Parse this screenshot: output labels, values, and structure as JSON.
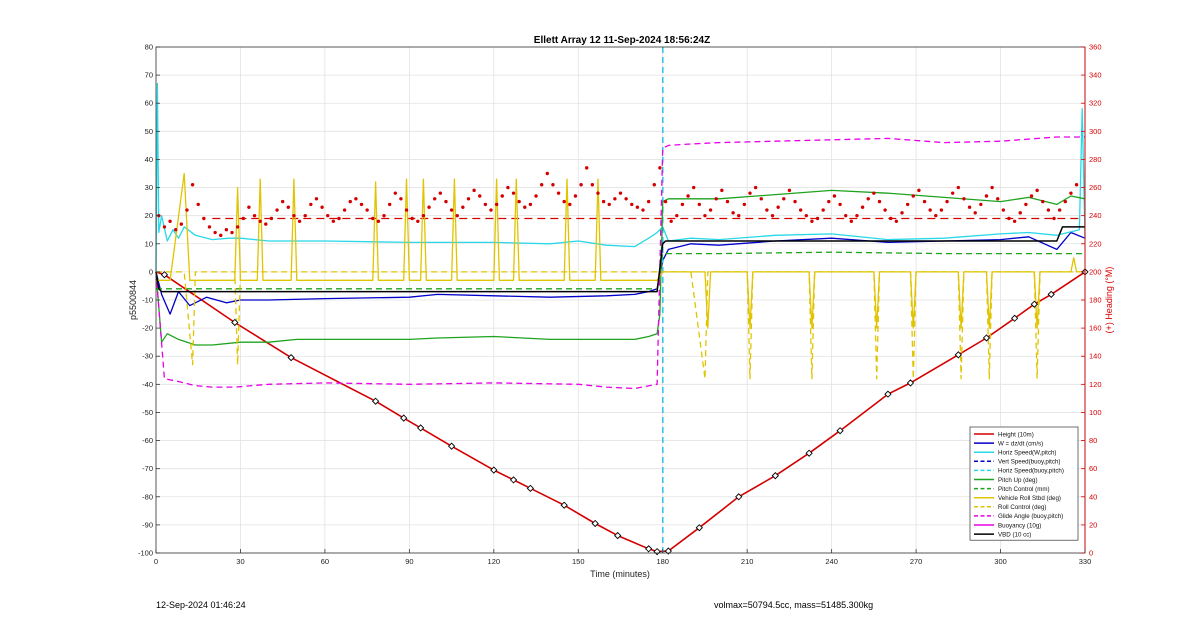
{
  "footer": {
    "timestamp": "12-Sep-2024 01:46:24",
    "mass_info": "volmax=50794.5cc, mass=51485.300kg"
  },
  "chart_data": {
    "type": "line",
    "title": "Ellett Array 12 11-Sep-2024 18:56:24Z",
    "xlabel": "Time (minutes)",
    "ylabel": "p5500844",
    "y2label": "(+) Heading (°M)",
    "xlim": [
      0,
      330
    ],
    "ylim": [
      -100,
      80
    ],
    "y2lim": [
      0,
      360
    ],
    "xticks": [
      0,
      30,
      60,
      90,
      120,
      150,
      180,
      210,
      240,
      270,
      300,
      330
    ],
    "yticks": [
      -100,
      -90,
      -80,
      -70,
      -60,
      -50,
      -40,
      -30,
      -20,
      -10,
      0,
      10,
      20,
      30,
      40,
      50,
      60,
      70,
      80
    ],
    "y2ticks": [
      0,
      20,
      40,
      60,
      80,
      100,
      120,
      140,
      160,
      180,
      200,
      220,
      240,
      260,
      280,
      300,
      320,
      340,
      360
    ],
    "apogee_line_x": 180,
    "grid": true,
    "legend_position": "bottom-right",
    "legend": [
      {
        "label": "Height (10m)",
        "color": "#d40000",
        "dash": false
      },
      {
        "label": "W = dz/dt (cm/s)",
        "color": "#0000c8",
        "dash": false
      },
      {
        "label": "Horiz Speed(W,pitch)",
        "color": "#28d8e8",
        "dash": false
      },
      {
        "label": "Vert Speed(buoy,pitch)",
        "color": "#0000c8",
        "dash": true
      },
      {
        "label": "Horiz Speed(buoy,pitch)",
        "color": "#28d8e8",
        "dash": true
      },
      {
        "label": "Pitch Up (deg)",
        "color": "#1fa31f",
        "dash": false
      },
      {
        "label": "Pitch Control (mm)",
        "color": "#1fa31f",
        "dash": true
      },
      {
        "label": "Vehicle Roll Stbd (deg)",
        "color": "#e0c400",
        "dash": false
      },
      {
        "label": "Roll Control (deg)",
        "color": "#e0c400",
        "dash": true
      },
      {
        "label": "Glide Angle (buoy,pitch)",
        "color": "#e600e6",
        "dash": true
      },
      {
        "label": "Buoyancy (10g)",
        "color": "#e600e6",
        "dash": false
      },
      {
        "label": "VBD (10 cc)",
        "color": "#000000",
        "dash": false
      }
    ],
    "series": [
      {
        "name": "Height (10m)",
        "color": "#d40000",
        "width": 1.6,
        "dash": false,
        "x": [
          0,
          3,
          28,
          48,
          78,
          88,
          94,
          105,
          120,
          127,
          133,
          145,
          156,
          164,
          175,
          178,
          182,
          193,
          207,
          220,
          232,
          243,
          260,
          268,
          285,
          295,
          305,
          312,
          318,
          330
        ],
        "y": [
          0,
          -1,
          -18,
          -30.5,
          -46,
          -52,
          -55.5,
          -62,
          -70.5,
          -74,
          -77,
          -83,
          -89.5,
          -93.8,
          -98.5,
          -99.5,
          -99.3,
          -91,
          -80,
          -72.5,
          -64.5,
          -56.5,
          -43.5,
          -39.5,
          -29.5,
          -23.5,
          -16.5,
          -11.5,
          -8,
          0
        ]
      },
      {
        "name": "W = dz/dt (cm/s)",
        "color": "#0000c8",
        "width": 1.3,
        "dash": false,
        "x": [
          0,
          2,
          5,
          8,
          12,
          18,
          25,
          30,
          40,
          60,
          90,
          100,
          120,
          140,
          160,
          170,
          175,
          178,
          180,
          182,
          190,
          200,
          220,
          240,
          260,
          280,
          300,
          310,
          320,
          325,
          330
        ],
        "y": [
          0,
          -8,
          -15,
          -7,
          -12,
          -9,
          -11,
          -10,
          -10,
          -9.5,
          -9,
          -8,
          -8.5,
          -9,
          -8.5,
          -8,
          -7,
          -6,
          4,
          8,
          10,
          9.5,
          11,
          12,
          10.5,
          11,
          11.5,
          12.5,
          8,
          14,
          12
        ]
      },
      {
        "name": "Horiz Speed(W,pitch)",
        "color": "#28d8e8",
        "width": 1.3,
        "dash": false,
        "x": [
          0,
          0.5,
          1,
          2,
          4,
          6,
          8,
          10,
          14,
          20,
          26,
          30,
          40,
          60,
          90,
          120,
          140,
          150,
          160,
          170,
          175,
          178,
          180,
          182,
          190,
          200,
          220,
          240,
          260,
          280,
          300,
          310,
          320,
          328,
          329,
          330
        ],
        "y": [
          0,
          67,
          14,
          20,
          11,
          15,
          12,
          16,
          13,
          11.5,
          12,
          12,
          11,
          11,
          10.5,
          10.5,
          10,
          11,
          9.5,
          9,
          12,
          14,
          16,
          11,
          12,
          11.5,
          13,
          13.5,
          11.5,
          12,
          13.5,
          14,
          13,
          15,
          58,
          12
        ]
      },
      {
        "name": "Vert Speed(buoy,pitch)",
        "color": "#0000c8",
        "width": 1.3,
        "dash": true,
        "x": [
          180,
          180
        ],
        "y": [
          -100,
          80
        ]
      },
      {
        "name": "Horiz Speed(buoy,pitch)",
        "color": "#28d8e8",
        "width": 1.3,
        "dash": true,
        "x": [
          180,
          180
        ],
        "y": [
          -100,
          80
        ]
      },
      {
        "name": "Pitch Up (deg)",
        "color": "#1fa31f",
        "width": 1.3,
        "dash": false,
        "x": [
          0,
          2,
          4,
          8,
          14,
          20,
          30,
          40,
          50,
          60,
          90,
          100,
          120,
          140,
          160,
          170,
          175,
          178,
          179,
          180,
          182,
          190,
          200,
          220,
          240,
          260,
          280,
          300,
          310,
          320,
          325,
          330
        ],
        "y": [
          0,
          -25,
          -22,
          -24,
          -26,
          -26,
          -25,
          -25,
          -24,
          -24,
          -24,
          -23.5,
          -23,
          -24,
          -24,
          -24,
          -23,
          -22,
          -15,
          25,
          26,
          26,
          26,
          27.5,
          29,
          28,
          26.5,
          25,
          26.5,
          24,
          27,
          26
        ]
      },
      {
        "name": "Pitch Control (mm)",
        "color": "#1fa31f",
        "width": 1.3,
        "dash": true,
        "x": [
          0,
          40,
          80,
          120,
          160,
          178,
          180,
          200,
          240,
          280,
          330
        ],
        "y": [
          -6,
          -6,
          -6,
          -6,
          -6,
          -6,
          6.5,
          6.5,
          7,
          6.5,
          6.5
        ]
      },
      {
        "name": "Vehicle Roll Stbd (deg)",
        "color": "#e0c400",
        "width": 1.3,
        "dash": false,
        "x": [
          0,
          5,
          10,
          12,
          14,
          16,
          28,
          29,
          30,
          36,
          37,
          38,
          48,
          49,
          50,
          77,
          78,
          79,
          88,
          89,
          90,
          94,
          95,
          96,
          105,
          106,
          107,
          120,
          121,
          122,
          127,
          128,
          129,
          145,
          146,
          147,
          156,
          157,
          158,
          175,
          178,
          180,
          182,
          195,
          196,
          197,
          210,
          211,
          212,
          232,
          233,
          234,
          255,
          256,
          257,
          268,
          269,
          270,
          285,
          286,
          287,
          295,
          296,
          297,
          312,
          313,
          314,
          325,
          326,
          327,
          330
        ],
        "y": [
          -3,
          -3,
          35,
          -3,
          -3,
          -3,
          -3,
          30,
          -3,
          -3,
          33,
          -3,
          -3,
          33,
          -3,
          -3,
          32,
          -3,
          -3,
          33,
          -3,
          -3,
          33,
          -3,
          -3,
          33,
          -3,
          -3,
          33,
          -3,
          -3,
          33,
          -3,
          -3,
          33,
          -3,
          -3,
          33,
          -3,
          -3,
          -3,
          0,
          0,
          0,
          -20,
          0,
          0,
          -20,
          0,
          0,
          -20,
          0,
          0,
          -20,
          0,
          0,
          -20,
          0,
          0,
          -20,
          0,
          0,
          -20,
          0,
          0,
          -20,
          0,
          0,
          5,
          0,
          0
        ]
      },
      {
        "name": "Roll Control (deg)",
        "color": "#e0c400",
        "width": 1.3,
        "dash": true,
        "x": [
          0,
          10,
          13,
          14,
          15,
          28,
          29,
          30,
          180,
          190,
          195,
          196,
          197,
          210,
          211,
          212,
          232,
          233,
          234,
          255,
          256,
          257,
          268,
          269,
          270,
          285,
          286,
          287,
          295,
          296,
          297,
          312,
          313,
          314,
          330
        ],
        "y": [
          0,
          0,
          -33,
          0,
          0,
          0,
          -33,
          0,
          0,
          0,
          -38,
          0,
          0,
          0,
          -38,
          0,
          0,
          -38,
          0,
          0,
          -38,
          0,
          0,
          -38,
          0,
          0,
          -38,
          0,
          0,
          -38,
          0,
          0,
          -38,
          0,
          0
        ]
      },
      {
        "name": "Glide Angle (buoy,pitch)",
        "color": "#e600e6",
        "width": 1.3,
        "dash": true,
        "x": [
          0,
          3,
          8,
          14,
          20,
          28,
          40,
          60,
          90,
          120,
          150,
          160,
          170,
          178,
          180,
          182,
          190,
          200,
          220,
          240,
          260,
          280,
          300,
          320,
          330
        ],
        "y": [
          0,
          -38,
          -39,
          -40.5,
          -41,
          -41,
          -40,
          -39.5,
          -40,
          -39.5,
          -40,
          -41,
          -41.5,
          -40,
          44,
          45,
          45.5,
          46,
          46.5,
          47,
          47.5,
          46,
          46.5,
          48,
          48
        ]
      },
      {
        "name": "Buoyancy (10g)",
        "color": "#e600e6",
        "width": 1.3,
        "dash": false,
        "x": [],
        "y": []
      },
      {
        "name": "VBD (10 cc)",
        "color": "#000000",
        "width": 1.5,
        "dash": false,
        "x": [
          0,
          1,
          2,
          176,
          178,
          180,
          181,
          320,
          322,
          330
        ],
        "y": [
          0,
          -6,
          -7,
          -7,
          -7,
          10,
          11,
          11,
          16,
          16
        ]
      }
    ],
    "heading_points": {
      "name": "Heading",
      "color": "#d40000",
      "x": [
        1,
        3,
        5,
        7,
        9,
        11,
        13,
        15,
        17,
        19,
        21,
        23,
        25,
        27,
        29,
        31,
        33,
        35,
        37,
        39,
        41,
        43,
        45,
        47,
        49,
        51,
        53,
        55,
        57,
        59,
        61,
        63,
        65,
        67,
        69,
        71,
        73,
        75,
        77,
        79,
        81,
        83,
        85,
        87,
        89,
        91,
        93,
        95,
        97,
        99,
        101,
        103,
        105,
        107,
        109,
        111,
        113,
        115,
        117,
        119,
        121,
        123,
        125,
        127,
        129,
        131,
        133,
        135,
        137,
        139,
        141,
        143,
        145,
        147,
        149,
        151,
        153,
        155,
        157,
        159,
        161,
        163,
        165,
        167,
        169,
        171,
        173,
        175,
        177,
        179,
        181,
        183,
        185,
        187,
        189,
        191,
        193,
        195,
        197,
        199,
        201,
        203,
        205,
        207,
        209,
        211,
        213,
        215,
        217,
        219,
        221,
        223,
        225,
        227,
        229,
        231,
        233,
        235,
        237,
        239,
        241,
        243,
        245,
        247,
        249,
        251,
        253,
        255,
        257,
        259,
        261,
        263,
        265,
        267,
        269,
        271,
        273,
        275,
        277,
        279,
        281,
        283,
        285,
        287,
        289,
        291,
        293,
        295,
        297,
        299,
        301,
        303,
        305,
        307,
        309,
        311,
        313,
        315,
        317,
        319,
        321,
        323,
        325,
        327
      ],
      "y": [
        240,
        232,
        236,
        230,
        234,
        244,
        262,
        248,
        238,
        232,
        228,
        226,
        230,
        228,
        232,
        238,
        246,
        240,
        236,
        234,
        238,
        244,
        250,
        246,
        240,
        236,
        240,
        248,
        252,
        246,
        240,
        236,
        238,
        244,
        250,
        252,
        248,
        244,
        238,
        236,
        240,
        248,
        256,
        252,
        244,
        238,
        236,
        240,
        246,
        252,
        256,
        250,
        244,
        240,
        246,
        252,
        258,
        254,
        248,
        244,
        248,
        254,
        260,
        256,
        250,
        246,
        248,
        254,
        262,
        270,
        262,
        256,
        250,
        248,
        254,
        262,
        274,
        262,
        256,
        250,
        248,
        252,
        256,
        252,
        248,
        246,
        244,
        250,
        262,
        274,
        250,
        236,
        240,
        248,
        254,
        260,
        248,
        240,
        244,
        252,
        258,
        250,
        242,
        240,
        248,
        256,
        260,
        252,
        244,
        240,
        246,
        252,
        258,
        250,
        244,
        240,
        236,
        238,
        244,
        250,
        254,
        248,
        240,
        236,
        240,
        246,
        252,
        256,
        250,
        244,
        238,
        236,
        242,
        248,
        254,
        258,
        250,
        244,
        240,
        244,
        250,
        256,
        260,
        252,
        246,
        242,
        248,
        254,
        260,
        252,
        244,
        238,
        236,
        242,
        248,
        254,
        258,
        250,
        244,
        238,
        244,
        250,
        256,
        262
      ]
    },
    "heading_target": {
      "name": "Heading target",
      "color": "#d40000",
      "value": 238
    }
  }
}
